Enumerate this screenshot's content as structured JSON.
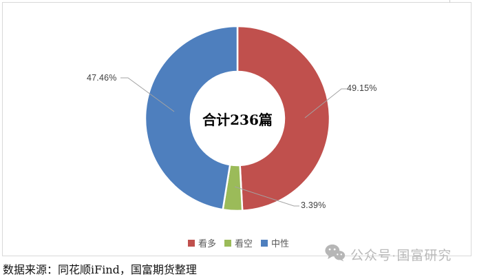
{
  "chart_data": {
    "type": "pie",
    "subtype": "donut",
    "center_label": "合计236篇",
    "total": 236,
    "start_angle": "top",
    "direction": "clockwise",
    "legend_position": "bottom",
    "leader_line_color": "#a3a3a3",
    "slices": [
      {
        "key": "bullish",
        "label": "看多",
        "pct_label": "49.15%",
        "value": 49.15,
        "count": 116,
        "color": "#C0504D"
      },
      {
        "key": "bearish",
        "label": "看空",
        "pct_label": "3.39%",
        "value": 3.39,
        "count": 8,
        "color": "#9BBB59"
      },
      {
        "key": "neutral",
        "label": "中性",
        "pct_label": "47.46%",
        "value": 47.46,
        "count": 112,
        "color": "#4E7FBE"
      }
    ]
  },
  "footer": {
    "source": "数据来源：同花顺iFind，国富期货整理"
  },
  "watermark": {
    "icon": "wechat-icon",
    "text": "公众号·国富研究",
    "color": "#b9b9b9"
  }
}
